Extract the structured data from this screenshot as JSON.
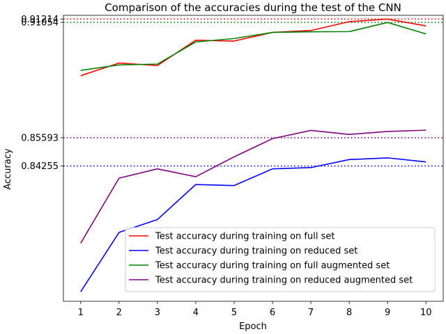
{
  "chart_data": {
    "type": "line",
    "title": "Comparison of the accuracies during the test of the CNN",
    "xlabel": "Epoch",
    "ylabel": "Accuracy",
    "x": [
      1,
      2,
      3,
      4,
      5,
      6,
      7,
      8,
      9,
      10
    ],
    "xlim": [
      0.55,
      10.45
    ],
    "ylim": [
      0.7785,
      0.9139
    ],
    "yticks": [
      "0.84255",
      "0.85593",
      "0.91054",
      "0.91214"
    ],
    "legend_position": "lower right",
    "series": [
      {
        "name": "Test accuracy during training on full set",
        "color": "#ff0000",
        "values": [
          0.8853,
          0.8913,
          0.8901,
          0.9021,
          0.9017,
          0.9058,
          0.9067,
          0.9109,
          0.9121,
          0.9089
        ],
        "reference_line": 0.91214,
        "reference_label": "0.91214"
      },
      {
        "name": "Test accuracy during training on reduced set",
        "color": "#0000ff",
        "values": [
          0.783,
          0.8111,
          0.8172,
          0.8338,
          0.8333,
          0.8412,
          0.8418,
          0.8456,
          0.8464,
          0.8445
        ],
        "reference_line": 0.84255,
        "reference_label": "0.84255"
      },
      {
        "name": "Test accuracy during training on full augmented set",
        "color": "#008000",
        "values": [
          0.8878,
          0.8904,
          0.8908,
          0.9013,
          0.9029,
          0.9058,
          0.9061,
          0.9062,
          0.9105,
          0.9051
        ],
        "reference_line": 0.91054,
        "reference_label": "0.91054"
      },
      {
        "name": "Test accuracy during training on reduced augmented set",
        "color": "#800080",
        "values": [
          0.806,
          0.8368,
          0.8412,
          0.8375,
          0.8469,
          0.8555,
          0.8594,
          0.8575,
          0.8589,
          0.8595
        ],
        "reference_line": 0.85593,
        "reference_label": "0.85593"
      }
    ]
  }
}
